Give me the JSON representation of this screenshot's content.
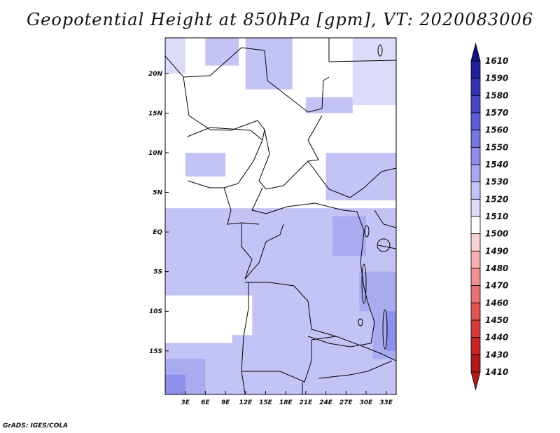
{
  "title": "Geopotential Height at 850hPa [gpm], VT: 2020083006",
  "footer": "GrADS: IGES/COLA",
  "chart_data": {
    "type": "heatmap",
    "title": "Geopotential Height at 850hPa [gpm], VT: 2020083006",
    "variable": "Geopotential Height",
    "level": "850hPa",
    "units": "gpm",
    "valid_time": "2020083006",
    "lon_range": [
      0,
      34.5
    ],
    "lat_range": [
      -20.5,
      24.5
    ],
    "x_ticks": [
      {
        "value": 3,
        "label": "3E"
      },
      {
        "value": 6,
        "label": "6E"
      },
      {
        "value": 9,
        "label": "9E"
      },
      {
        "value": 12,
        "label": "12E"
      },
      {
        "value": 15,
        "label": "15E"
      },
      {
        "value": 18,
        "label": "18E"
      },
      {
        "value": 21,
        "label": "21E"
      },
      {
        "value": 24,
        "label": "24E"
      },
      {
        "value": 27,
        "label": "27E"
      },
      {
        "value": 30,
        "label": "30E"
      },
      {
        "value": 33,
        "label": "33E"
      }
    ],
    "y_ticks": [
      {
        "value": 20,
        "label": "20N"
      },
      {
        "value": 15,
        "label": "15N"
      },
      {
        "value": 10,
        "label": "10N"
      },
      {
        "value": 5,
        "label": "5N"
      },
      {
        "value": 0,
        "label": "EQ"
      },
      {
        "value": -5,
        "label": "5S"
      },
      {
        "value": -10,
        "label": "10S"
      },
      {
        "value": -15,
        "label": "15S"
      }
    ],
    "colorbar": {
      "levels": [
        1410,
        1430,
        1440,
        1450,
        1460,
        1470,
        1480,
        1490,
        1500,
        1510,
        1520,
        1530,
        1540,
        1550,
        1560,
        1570,
        1580,
        1590,
        1610
      ],
      "colors": [
        "#ffffff",
        "#b01a1a",
        "#c52727",
        "#d53a3a",
        "#e05454",
        "#e77272",
        "#ee9090",
        "#f4b0b0",
        "#f9d2d2",
        "#ffffff",
        "#dcdcfa",
        "#c3c3f6",
        "#aaaaf1",
        "#8f8eeb",
        "#7676e2",
        "#5e5cd6",
        "#4847c6",
        "#3433b3",
        "#20209a",
        "#14137f"
      ]
    },
    "field_regions": [
      {
        "value": 1515,
        "lon": [
          0,
          3
        ],
        "lat": [
          20,
          24.5
        ]
      },
      {
        "value": 1515,
        "lon": [
          28,
          34.5
        ],
        "lat": [
          16,
          24.5
        ]
      },
      {
        "value": 1525,
        "lon": [
          6,
          11
        ],
        "lat": [
          21,
          24.5
        ]
      },
      {
        "value": 1525,
        "lon": [
          12,
          19
        ],
        "lat": [
          18,
          24.5
        ]
      },
      {
        "value": 1525,
        "lon": [
          21,
          28
        ],
        "lat": [
          15,
          17
        ]
      },
      {
        "value": 1525,
        "lon": [
          24,
          34.5
        ],
        "lat": [
          4,
          10
        ]
      },
      {
        "value": 1525,
        "lon": [
          3,
          9
        ],
        "lat": [
          7,
          10
        ]
      },
      {
        "value": 1525,
        "lon": [
          0,
          34.5
        ],
        "lat": [
          -8,
          3
        ]
      },
      {
        "value": 1525,
        "lon": [
          13,
          34.5
        ],
        "lat": [
          -13,
          -8
        ]
      },
      {
        "value": 1525,
        "lon": [
          10,
          34.5
        ],
        "lat": [
          -20.5,
          -13
        ]
      },
      {
        "value": 1525,
        "lon": [
          0,
          10
        ],
        "lat": [
          -20.5,
          -14
        ]
      },
      {
        "value": 1535,
        "lon": [
          25,
          30
        ],
        "lat": [
          -3,
          2
        ]
      },
      {
        "value": 1535,
        "lon": [
          29,
          34.5
        ],
        "lat": [
          -10,
          -5
        ]
      },
      {
        "value": 1535,
        "lon": [
          31,
          34.5
        ],
        "lat": [
          -16,
          -10
        ]
      },
      {
        "value": 1535,
        "lon": [
          0,
          6
        ],
        "lat": [
          -20.5,
          -16
        ]
      },
      {
        "value": 1545,
        "lon": [
          0,
          3
        ],
        "lat": [
          -20.5,
          -18
        ]
      },
      {
        "value": 1545,
        "lon": [
          33,
          34.5
        ],
        "lat": [
          -15,
          -10
        ]
      }
    ]
  }
}
